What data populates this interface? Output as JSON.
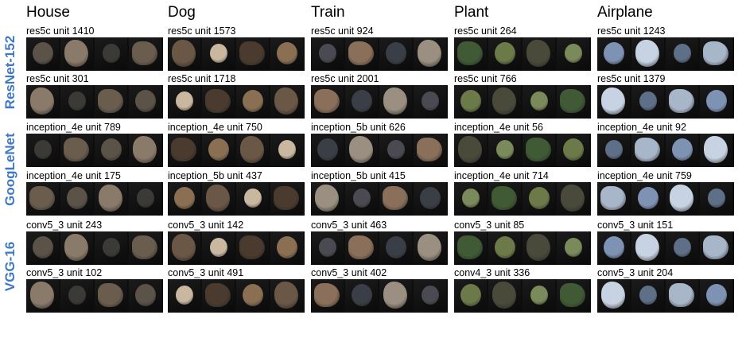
{
  "columns": [
    "House",
    "Dog",
    "Train",
    "Plant",
    "Airplane"
  ],
  "row_groups": [
    {
      "label": "ResNet-152",
      "rows": [
        0,
        1
      ]
    },
    {
      "label": "GoogLeNet",
      "rows": [
        2,
        3
      ]
    },
    {
      "label": "VGG-16",
      "rows": [
        4,
        5
      ]
    }
  ],
  "units": [
    [
      "res5c unit 1410",
      "res5c unit 1573",
      "res5c unit 924",
      "res5c unit 264",
      "res5c unit 1243"
    ],
    [
      "res5c unit 301",
      "res5c unit 1718",
      "res5c unit 2001",
      "res5c unit 766",
      "res5c unit 1379"
    ],
    [
      "inception_4e unit 789",
      "inception_4e unit 750",
      "inception_5b unit 626",
      "inception_4e unit 56",
      "inception_4e unit 92"
    ],
    [
      "inception_4e unit 175",
      "inception_5b unit 437",
      "inception_5b unit 415",
      "inception_4e unit 714",
      "inception_4e unit 759"
    ],
    [
      "conv5_3 unit 243",
      "conv5_3 unit 142",
      "conv5_3 unit 463",
      "conv5_3 unit 85",
      "conv5_3 unit 151"
    ],
    [
      "conv5_3 unit 102",
      "conv5_3 unit 491",
      "conv5_3 unit 402",
      "conv4_3 unit 336",
      "conv5_3 unit 204"
    ]
  ],
  "colors": {
    "group_label": "#3f78c2",
    "strip_background": "#0d0d0d",
    "thumb_tints": {
      "House": [
        "#5b5248",
        "#8a7a6a",
        "#3c3a36",
        "#6a5d4e"
      ],
      "Dog": [
        "#6b5746",
        "#c9b79f",
        "#4a3b2e",
        "#8a6f52"
      ],
      "Train": [
        "#4a4a52",
        "#8a6f5a",
        "#3a3e46",
        "#9a8f80"
      ],
      "Plant": [
        "#3f5a34",
        "#6b7a48",
        "#4a4a3a",
        "#7a8a5a"
      ],
      "Airplane": [
        "#7e93b4",
        "#c7d3e3",
        "#5e6f88",
        "#a8b6c9"
      ]
    }
  }
}
